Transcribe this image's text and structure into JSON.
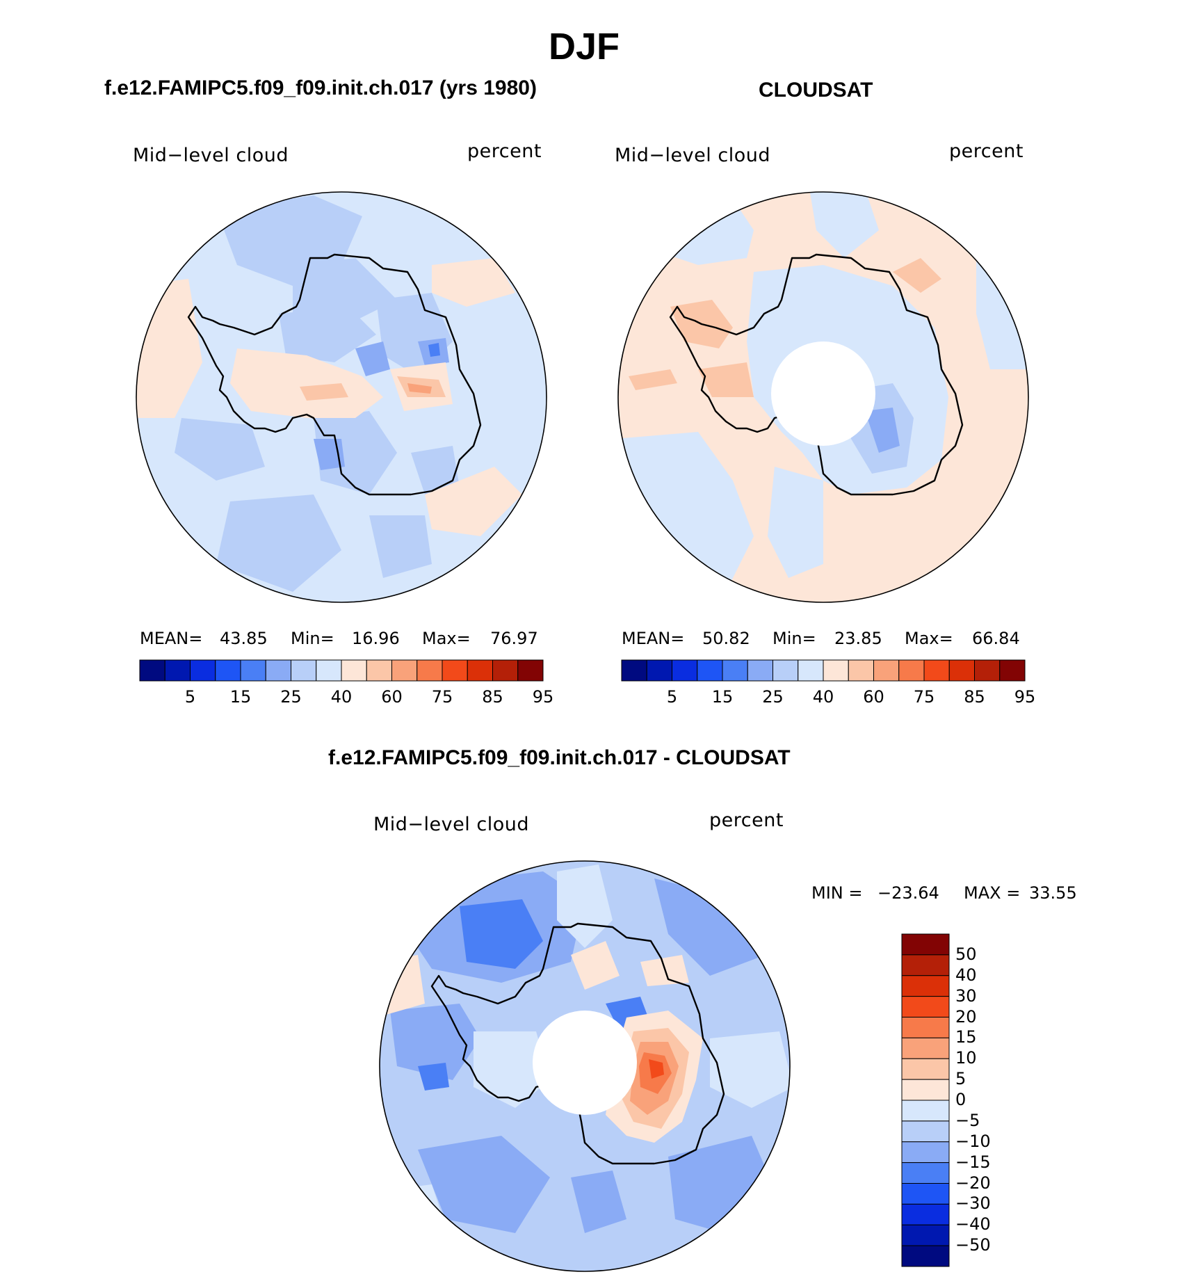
{
  "figure": {
    "season_title": "DJF",
    "colors": {
      "abs_scale": [
        "#000a80",
        "#0018b0",
        "#0a2de0",
        "#1e55f5",
        "#4a7ff5",
        "#8aabf5",
        "#b8cff8",
        "#d7e7fc",
        "#fde6d8",
        "#fbc6a8",
        "#f9a27a",
        "#f77a4a",
        "#f24a1a",
        "#db3008",
        "#b42008",
        "#820404"
      ],
      "diff_scale": [
        "#000a80",
        "#0018b0",
        "#0a2de0",
        "#1e55f5",
        "#4a7ff5",
        "#8aabf5",
        "#b8cff8",
        "#d7e7fc",
        "#fde6d8",
        "#fbc6a8",
        "#f9a27a",
        "#f77a4a",
        "#f24a1a",
        "#db3008",
        "#b42008",
        "#820404"
      ],
      "coastline": "#000000"
    }
  },
  "panels": [
    {
      "id": "model",
      "title": "f.e12.FAMIPC5.f09_f09.init.ch.017 (yrs 1980)",
      "variable_label": "Mid−level cloud",
      "units_label": "percent",
      "stats": {
        "mean_label": "MEAN=",
        "mean": "43.85",
        "min_label": "Min=",
        "min": "16.96",
        "max_label": "Max=",
        "max": "76.97"
      }
    },
    {
      "id": "obs",
      "title": "CLOUDSAT",
      "variable_label": "Mid−level cloud",
      "units_label": "percent",
      "stats": {
        "mean_label": "MEAN=",
        "mean": "50.82",
        "min_label": "Min=",
        "min": "23.85",
        "max_label": "Max=",
        "max": "66.84"
      }
    },
    {
      "id": "diff",
      "title": "f.e12.FAMIPC5.f09_f09.init.ch.017 - CLOUDSAT",
      "variable_label": "Mid−level cloud",
      "units_label": "percent",
      "stats": {
        "min_label": "MIN =",
        "min": "−23.64",
        "max_label": "MAX =",
        "max": "33.55"
      }
    }
  ],
  "abs_colorbar_ticks": [
    "5",
    "15",
    "25",
    "40",
    "60",
    "75",
    "85",
    "95"
  ],
  "diff_colorbar_ticks": [
    "50",
    "40",
    "30",
    "20",
    "15",
    "10",
    "5",
    "0",
    "−5",
    "−10",
    "−15",
    "−20",
    "−30",
    "−40",
    "−50"
  ]
}
